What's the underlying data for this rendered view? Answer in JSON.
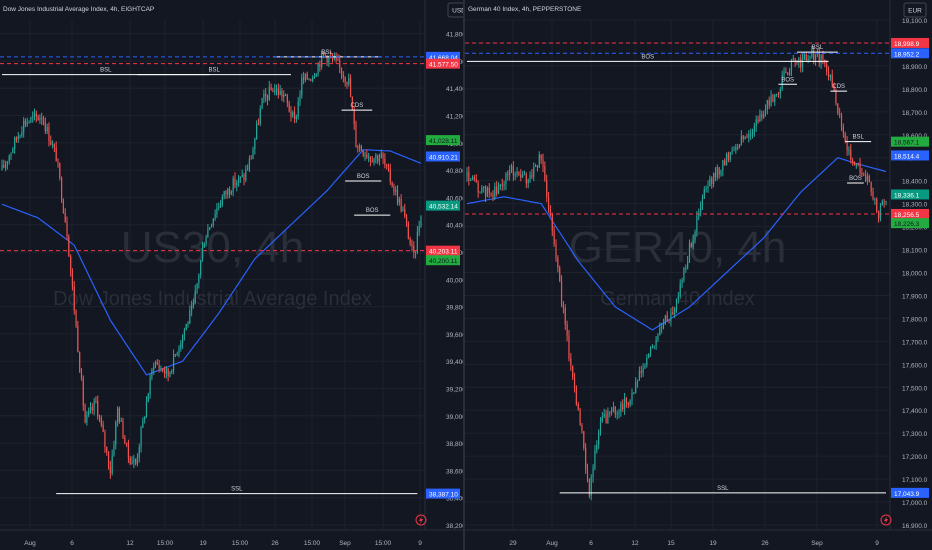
{
  "colors": {
    "background": "#131722",
    "grid": "#1e222d",
    "up": "#26a69a",
    "down": "#ef5350",
    "ma": "#2962ff",
    "text": "#b2b5be",
    "watermark": "#2a2e39",
    "resistance": "#f23645",
    "blue_level": "#2962ff",
    "price_tag": "#089981",
    "green_tag": "#22ab3e",
    "fvg": "#1c3a3a",
    "fvg_bear": "#3a1e33"
  },
  "chart_data": [
    {
      "type": "candlestick",
      "title": "Dow Jones Industrial Average Index, 4h, EIGHTCAP",
      "currency": "USD",
      "watermark_symbol": "US30, 4h",
      "watermark_name": "Dow Jones Industrial Average Index",
      "ylim": [
        38200,
        41900
      ],
      "y_ticks": [
        "41,800.00",
        "41,600.00",
        "41,400.00",
        "41,200.00",
        "41,000.00",
        "40,800.00",
        "40,600.00",
        "40,400.00",
        "40,200.00",
        "40,000.00",
        "39,800.00",
        "39,600.00",
        "39,400.00",
        "39,200.00",
        "39,000.00",
        "38,800.00",
        "38,600.00",
        "38,400.00",
        "38,200.00"
      ],
      "x_ticks": [
        "Aug",
        "6",
        "12",
        "15:00",
        "19",
        "15:00",
        "26",
        "15:00",
        "Sep",
        "15:00",
        "9"
      ],
      "bars": 180,
      "anchors": [
        [
          0,
          40800
        ],
        [
          12,
          41150
        ],
        [
          22,
          41200
        ],
        [
          30,
          40900
        ],
        [
          36,
          40350
        ],
        [
          46,
          38950
        ],
        [
          52,
          39100
        ],
        [
          60,
          38600
        ],
        [
          64,
          39050
        ],
        [
          70,
          38700
        ],
        [
          74,
          38650
        ],
        [
          84,
          39400
        ],
        [
          92,
          39300
        ],
        [
          100,
          39600
        ],
        [
          106,
          39800
        ],
        [
          112,
          40300
        ],
        [
          118,
          40500
        ],
        [
          122,
          40600
        ],
        [
          128,
          40700
        ],
        [
          134,
          40750
        ],
        [
          138,
          40900
        ],
        [
          144,
          41300
        ],
        [
          150,
          41400
        ],
        [
          156,
          41350
        ],
        [
          162,
          41150
        ],
        [
          166,
          41450
        ],
        [
          172,
          41500
        ],
        [
          178,
          41650
        ],
        [
          184,
          41600
        ],
        [
          192,
          41450
        ],
        [
          196,
          41000
        ],
        [
          204,
          40900
        ],
        [
          210,
          40900
        ],
        [
          216,
          40700
        ],
        [
          222,
          40500
        ],
        [
          228,
          40150
        ],
        [
          232,
          40500
        ]
      ],
      "series": [
        {
          "name": "",
          "style": "ma",
          "values": [
            [
              0,
              40550
            ],
            [
              20,
              40450
            ],
            [
              40,
              40250
            ],
            [
              60,
              39700
            ],
            [
              80,
              39300
            ],
            [
              100,
              39400
            ],
            [
              120,
              39750
            ],
            [
              140,
              40150
            ],
            [
              160,
              40400
            ],
            [
              180,
              40650
            ],
            [
              200,
              40950
            ],
            [
              215,
              40940
            ],
            [
              232,
              40850
            ]
          ]
        }
      ],
      "levels": [
        {
          "label": "BSL",
          "price": 41630,
          "x0": 150,
          "x1": 210,
          "color": "#ffffff"
        },
        {
          "label": "BSL",
          "price": 41500,
          "x0": 75,
          "x1": 160,
          "color": "#ffffff"
        },
        {
          "label": "BSL",
          "price": 41500,
          "x0": 0,
          "x1": 115,
          "color": "#ffffff"
        },
        {
          "label": "SSL",
          "price": 38430,
          "x0": 30,
          "x1": 230,
          "color": "#ffffff"
        },
        {
          "label": "CDS",
          "price": 41240,
          "x0": 188,
          "x1": 205,
          "color": "#ffffff"
        },
        {
          "label": "BOS",
          "price": 40720,
          "x0": 190,
          "x1": 210,
          "color": "#ffffff"
        },
        {
          "label": "BOS",
          "price": 40470,
          "x0": 195,
          "x1": 215,
          "color": "#ffffff"
        }
      ],
      "price_labels": [
        {
          "text": "41,668.04",
          "price": 41630,
          "kind": "blue"
        },
        {
          "text": "41,577.50",
          "price": 41580,
          "kind": "red"
        },
        {
          "text": "41,028.11",
          "price": 41020,
          "kind": "green"
        },
        {
          "text": "40,910.21",
          "price": 40900,
          "kind": "blue"
        },
        {
          "text": "40,532.14",
          "price": 40540,
          "kind": "tag"
        },
        {
          "text": "40,203.11",
          "price": 40210,
          "kind": "red"
        },
        {
          "text": "40,200.11",
          "price": 40140,
          "kind": "green"
        },
        {
          "text": "38,387.10",
          "price": 38430,
          "kind": "blue"
        }
      ]
    },
    {
      "type": "candlestick",
      "title": "German 40 Index, 4h, PEPPERSTONE",
      "currency": "EUR",
      "watermark_symbol": "GER40, 4h",
      "watermark_name": "German 40 Index",
      "ylim": [
        16900,
        19100
      ],
      "y_ticks": [
        "19,100.0",
        "19,000.0",
        "18,900.0",
        "18,800.0",
        "18,700.0",
        "18,600.0",
        "18,500.0",
        "18,400.0",
        "18,300.0",
        "18,200.0",
        "18,100.0",
        "18,000.0",
        "17,900.0",
        "17,800.0",
        "17,700.0",
        "17,600.0",
        "17,500.0",
        "17,400.0",
        "17,300.0",
        "17,200.0",
        "17,100.0",
        "17,000.0",
        "16,900.0"
      ],
      "x_ticks": [
        "29",
        "Aug",
        "6",
        "12",
        "15",
        "19",
        "26",
        "Sep",
        "9"
      ],
      "bars": 190,
      "anchors": [
        [
          0,
          18420
        ],
        [
          8,
          18350
        ],
        [
          16,
          18350
        ],
        [
          24,
          18450
        ],
        [
          32,
          18400
        ],
        [
          40,
          18500
        ],
        [
          46,
          18200
        ],
        [
          54,
          17700
        ],
        [
          60,
          17400
        ],
        [
          66,
          17050
        ],
        [
          72,
          17350
        ],
        [
          80,
          17400
        ],
        [
          88,
          17450
        ],
        [
          96,
          17600
        ],
        [
          104,
          17750
        ],
        [
          112,
          17850
        ],
        [
          120,
          18100
        ],
        [
          128,
          18350
        ],
        [
          136,
          18450
        ],
        [
          144,
          18550
        ],
        [
          152,
          18600
        ],
        [
          160,
          18700
        ],
        [
          168,
          18800
        ],
        [
          174,
          18900
        ],
        [
          180,
          18920
        ],
        [
          186,
          18950
        ],
        [
          192,
          18920
        ],
        [
          198,
          18800
        ],
        [
          204,
          18550
        ],
        [
          210,
          18480
        ],
        [
          216,
          18400
        ],
        [
          222,
          18250
        ],
        [
          226,
          18330
        ]
      ],
      "series": [
        {
          "name": "",
          "style": "ma",
          "values": [
            [
              0,
              18300
            ],
            [
              20,
              18330
            ],
            [
              40,
              18300
            ],
            [
              60,
              18050
            ],
            [
              80,
              17850
            ],
            [
              100,
              17750
            ],
            [
              120,
              17850
            ],
            [
              140,
              18000
            ],
            [
              160,
              18150
            ],
            [
              180,
              18350
            ],
            [
              200,
              18500
            ],
            [
              212,
              18470
            ],
            [
              226,
              18440
            ]
          ]
        }
      ],
      "levels": [
        {
          "label": "BOS",
          "price": 18920,
          "x0": 0,
          "x1": 195,
          "color": "#ffffff"
        },
        {
          "label": "BSL",
          "price": 18960,
          "x0": 178,
          "x1": 200,
          "color": "#ffffff"
        },
        {
          "label": "BOS",
          "price": 18820,
          "x0": 168,
          "x1": 178,
          "color": "#ffffff"
        },
        {
          "label": "CDS",
          "price": 18790,
          "x0": 196,
          "x1": 205,
          "color": "#ffffff"
        },
        {
          "label": "BSL",
          "price": 18570,
          "x0": 204,
          "x1": 218,
          "color": "#ffffff"
        },
        {
          "label": "BOS",
          "price": 18390,
          "x0": 205,
          "x1": 214,
          "color": "#ffffff"
        },
        {
          "label": "SSL",
          "price": 17040,
          "x0": 50,
          "x1": 226,
          "color": "#ffffff"
        }
      ],
      "price_labels": [
        {
          "text": "18,998.9",
          "price": 19000,
          "kind": "red"
        },
        {
          "text": "18,952.2",
          "price": 18955,
          "kind": "blue"
        },
        {
          "text": "18,567.1",
          "price": 18570,
          "kind": "green"
        },
        {
          "text": "18,514.4",
          "price": 18510,
          "kind": "blue"
        },
        {
          "text": "18,336.1",
          "price": 18340,
          "kind": "tag"
        },
        {
          "text": "18,256.5",
          "price": 18255,
          "kind": "red"
        },
        {
          "text": "18,226.3",
          "price": 18215,
          "kind": "green"
        },
        {
          "text": "17,043.9",
          "price": 17040,
          "kind": "blue"
        }
      ]
    }
  ]
}
